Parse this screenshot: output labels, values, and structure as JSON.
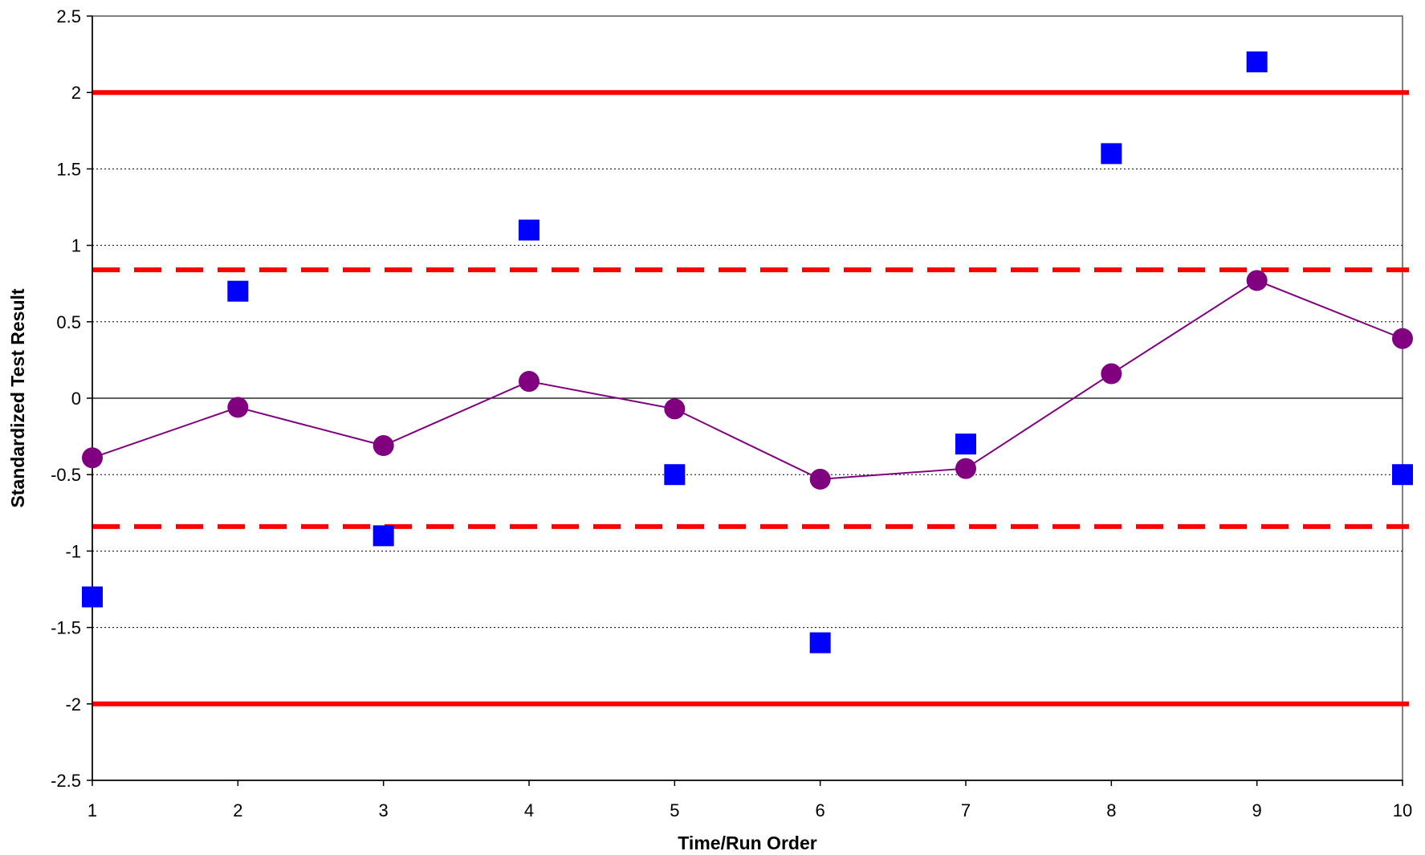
{
  "chart_data": {
    "type": "scatter",
    "title": "",
    "xlabel": "Time/Run Order",
    "ylabel": "Standardized Test Result",
    "xlim": [
      1,
      10
    ],
    "ylim": [
      -2.5,
      2.5
    ],
    "x_ticks": [
      "1",
      "2",
      "3",
      "4",
      "5",
      "6",
      "7",
      "8",
      "9",
      "10"
    ],
    "y_ticks": [
      "2.5",
      "2",
      "1.5",
      "1",
      "0.5",
      "0",
      "-0.5",
      "-1",
      "-1.5",
      "-2",
      "-2.5"
    ],
    "grid": "horizontal dotted",
    "series": [
      {
        "marker": "square",
        "color": "#0000ff",
        "x": [
          1,
          2,
          3,
          4,
          5,
          6,
          7,
          8,
          9,
          10
        ],
        "y": [
          -1.3,
          0.7,
          -0.9,
          1.1,
          -0.5,
          -1.6,
          -0.3,
          1.6,
          2.2,
          -0.5
        ]
      },
      {
        "marker": "circle",
        "line": true,
        "color": "#800080",
        "x": [
          1,
          2,
          3,
          4,
          5,
          6,
          7,
          8,
          9,
          10
        ],
        "y": [
          -0.39,
          -0.06,
          -0.31,
          0.11,
          -0.07,
          -0.53,
          -0.46,
          0.16,
          0.77,
          0.39
        ]
      }
    ],
    "reference_lines": [
      {
        "y": 2,
        "style": "solid",
        "color": "#ff0000"
      },
      {
        "y": -2,
        "style": "solid",
        "color": "#ff0000"
      },
      {
        "y": 0.84,
        "style": "dashed",
        "color": "#ff0000"
      },
      {
        "y": -0.84,
        "style": "dashed",
        "color": "#ff0000"
      }
    ]
  }
}
